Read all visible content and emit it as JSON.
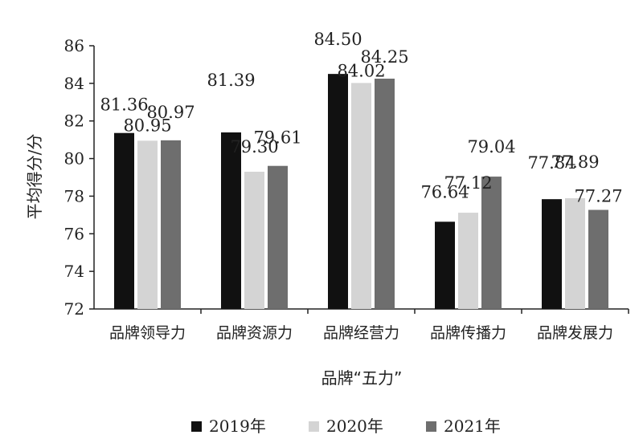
{
  "chart_data": {
    "type": "bar",
    "title": "",
    "xlabel": "品牌“五力”",
    "ylabel": "平均得分/分",
    "ylim": [
      72,
      86
    ],
    "yticks": [
      "72",
      "74",
      "76",
      "78",
      "80",
      "82",
      "84",
      "86"
    ],
    "grid": false,
    "legend_position": "bottom",
    "categories": [
      "品牌领导力",
      "品牌资源力",
      "品牌经营力",
      "品牌传播力",
      "品牌发展力"
    ],
    "series": [
      {
        "name": "2019年",
        "color": "#111111",
        "values": [
          81.36,
          81.39,
          84.5,
          76.64,
          77.84
        ],
        "labels": [
          "81.36",
          "81.39",
          "84.50",
          "76.64",
          "77.84"
        ]
      },
      {
        "name": "2020年",
        "color": "#d4d4d4",
        "values": [
          80.95,
          79.3,
          84.02,
          77.12,
          77.89
        ],
        "labels": [
          "80.95",
          "79.30",
          "84.02",
          "77.12",
          "77.89"
        ]
      },
      {
        "name": "2021年",
        "color": "#6e6e6e",
        "values": [
          80.97,
          79.61,
          84.25,
          79.04,
          77.27
        ],
        "labels": [
          "80.97",
          "79.61",
          "84.25",
          "79.04",
          "77.27"
        ]
      }
    ]
  }
}
